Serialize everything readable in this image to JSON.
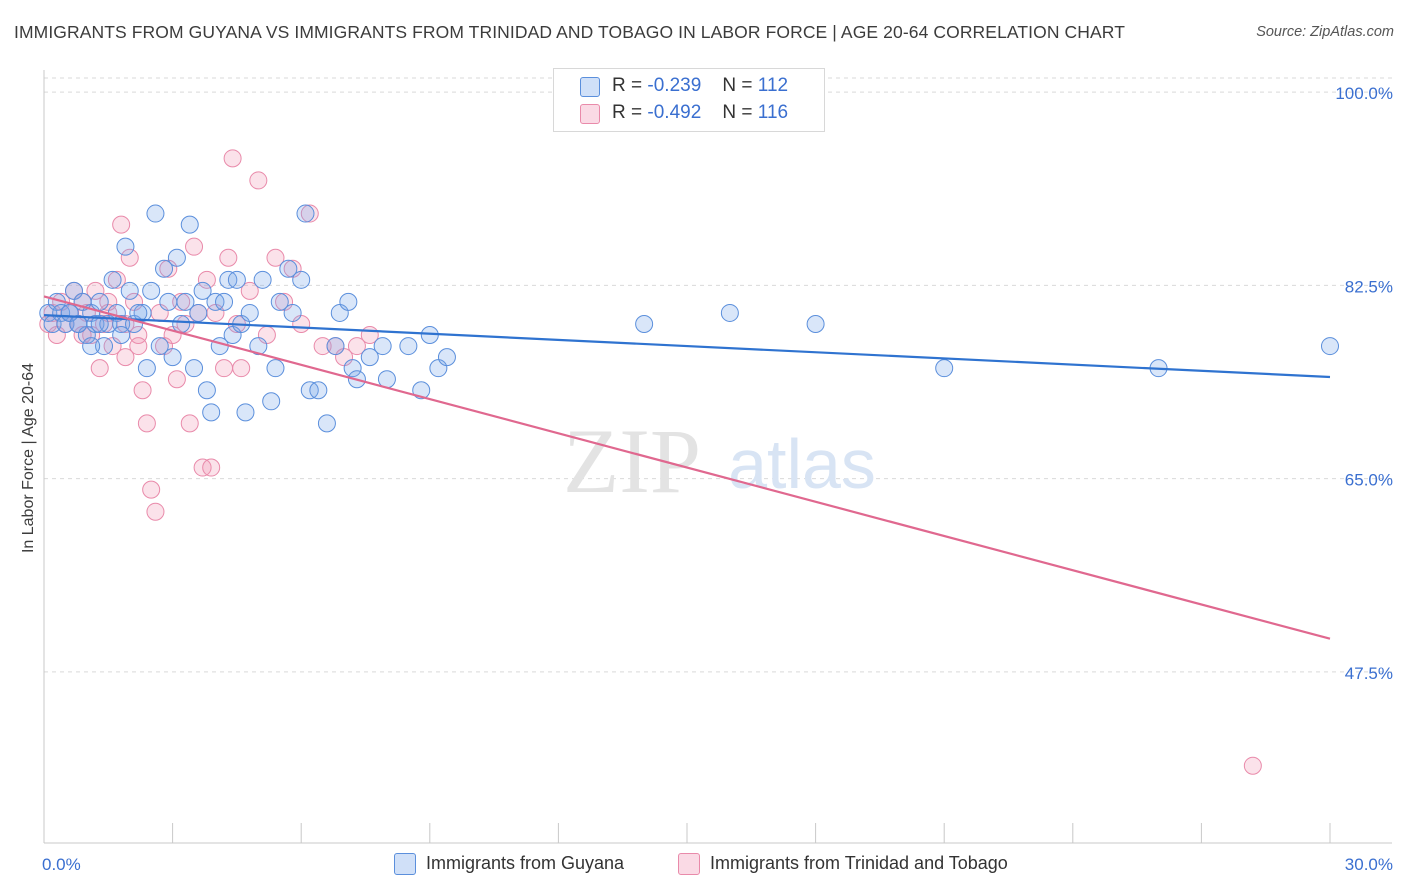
{
  "title": "IMMIGRANTS FROM GUYANA VS IMMIGRANTS FROM TRINIDAD AND TOBAGO IN LABOR FORCE | AGE 20-64 CORRELATION CHART",
  "source": "Source: ZipAtlas.com",
  "watermark": {
    "left": "ZIP",
    "right": "atlas"
  },
  "legend_stats": [
    {
      "r_label": "R =",
      "r_value": "-0.239",
      "n_label": "N =",
      "n_value": "112"
    },
    {
      "r_label": "R =",
      "r_value": "-0.492",
      "n_label": "N =",
      "n_value": "116"
    }
  ],
  "colors": {
    "guyana_fill": "rgba(120,165,235,0.28)",
    "guyana_stroke": "#5b8fdc",
    "guyana_line": "#2f73d0",
    "trinidad_fill": "rgba(240,150,180,0.28)",
    "trinidad_stroke": "#e98aaa",
    "trinidad_line": "#e0688f",
    "axis_text": "#3a6fd0",
    "grid": "#d9d9d9"
  },
  "chart_data": {
    "type": "scatter",
    "title": "IMMIGRANTS FROM GUYANA VS IMMIGRANTS FROM TRINIDAD AND TOBAGO IN LABOR FORCE | AGE 20-64 CORRELATION CHART",
    "xlabel": "",
    "ylabel": "In Labor Force | Age 20-64",
    "xlim": [
      0,
      30
    ],
    "ylim": [
      32,
      102
    ],
    "x_tick_labels": [
      "0.0%",
      "30.0%"
    ],
    "y_ticks": [
      47.5,
      65.0,
      82.5,
      100.0
    ],
    "y_tick_labels": [
      "47.5%",
      "65.0%",
      "82.5%",
      "100.0%"
    ],
    "grid": true,
    "legend_position": "bottom",
    "series": [
      {
        "name": "Immigrants from Guyana",
        "r": -0.239,
        "n": 112,
        "trend": {
          "x": [
            0,
            30
          ],
          "y": [
            79.8,
            74.2
          ]
        },
        "points": [
          [
            0.1,
            80
          ],
          [
            0.2,
            79
          ],
          [
            0.3,
            81
          ],
          [
            0.4,
            80
          ],
          [
            0.5,
            79
          ],
          [
            0.6,
            80
          ],
          [
            0.7,
            82
          ],
          [
            0.8,
            79
          ],
          [
            0.9,
            81
          ],
          [
            1.0,
            78
          ],
          [
            1.1,
            80
          ],
          [
            1.2,
            79
          ],
          [
            1.3,
            81
          ],
          [
            1.4,
            77
          ],
          [
            1.5,
            79
          ],
          [
            1.6,
            83
          ],
          [
            1.7,
            80
          ],
          [
            1.8,
            79
          ],
          [
            1.9,
            86
          ],
          [
            2.0,
            82
          ],
          [
            2.1,
            79
          ],
          [
            2.3,
            80
          ],
          [
            2.4,
            75
          ],
          [
            2.5,
            82
          ],
          [
            2.6,
            89
          ],
          [
            2.7,
            77
          ],
          [
            2.8,
            84
          ],
          [
            2.9,
            81
          ],
          [
            3.0,
            76
          ],
          [
            3.1,
            85
          ],
          [
            3.2,
            79
          ],
          [
            3.3,
            81
          ],
          [
            3.4,
            88
          ],
          [
            3.5,
            75
          ],
          [
            3.6,
            80
          ],
          [
            3.7,
            82
          ],
          [
            3.8,
            73
          ],
          [
            3.9,
            71
          ],
          [
            4.0,
            81
          ],
          [
            4.1,
            77
          ],
          [
            4.2,
            81
          ],
          [
            4.3,
            83
          ],
          [
            4.4,
            78
          ],
          [
            4.5,
            83
          ],
          [
            4.6,
            79
          ],
          [
            4.7,
            71
          ],
          [
            4.8,
            80
          ],
          [
            5.0,
            77
          ],
          [
            5.1,
            83
          ],
          [
            5.3,
            72
          ],
          [
            5.4,
            75
          ],
          [
            5.5,
            81
          ],
          [
            5.7,
            84
          ],
          [
            5.8,
            80
          ],
          [
            6.0,
            83
          ],
          [
            6.1,
            89
          ],
          [
            6.2,
            73
          ],
          [
            6.4,
            73
          ],
          [
            6.6,
            70
          ],
          [
            6.8,
            77
          ],
          [
            6.9,
            80
          ],
          [
            7.1,
            81
          ],
          [
            7.2,
            75
          ],
          [
            7.3,
            74
          ],
          [
            7.6,
            76
          ],
          [
            7.9,
            77
          ],
          [
            8.0,
            74
          ],
          [
            8.5,
            77
          ],
          [
            8.8,
            73
          ],
          [
            9.0,
            78
          ],
          [
            9.2,
            75
          ],
          [
            9.4,
            76
          ],
          [
            1.3,
            79
          ],
          [
            1.8,
            78
          ],
          [
            2.2,
            80
          ],
          [
            0.6,
            80
          ],
          [
            1.1,
            77
          ],
          [
            0.8,
            79
          ],
          [
            14,
            79
          ],
          [
            16,
            80
          ],
          [
            18,
            79
          ],
          [
            21,
            75
          ],
          [
            26,
            75
          ],
          [
            30,
            77
          ]
        ],
        "style": "blue circles"
      },
      {
        "name": "Immigrants from Trinidad and Tobago",
        "r": -0.492,
        "n": 116,
        "trend": {
          "x": [
            0,
            30
          ],
          "y": [
            81.5,
            50.5
          ]
        },
        "points": [
          [
            0.1,
            79
          ],
          [
            0.2,
            80
          ],
          [
            0.3,
            78
          ],
          [
            0.4,
            81
          ],
          [
            0.5,
            79
          ],
          [
            0.6,
            80
          ],
          [
            0.7,
            82
          ],
          [
            0.8,
            79
          ],
          [
            0.9,
            81
          ],
          [
            1.0,
            80
          ],
          [
            1.1,
            78
          ],
          [
            1.2,
            82
          ],
          [
            1.3,
            75
          ],
          [
            1.4,
            79
          ],
          [
            1.5,
            80
          ],
          [
            1.6,
            77
          ],
          [
            1.7,
            83
          ],
          [
            1.8,
            88
          ],
          [
            1.9,
            76
          ],
          [
            2.0,
            85
          ],
          [
            2.1,
            81
          ],
          [
            2.2,
            78
          ],
          [
            2.3,
            73
          ],
          [
            2.4,
            70
          ],
          [
            2.5,
            64
          ],
          [
            2.6,
            62
          ],
          [
            2.7,
            80
          ],
          [
            2.8,
            77
          ],
          [
            2.9,
            84
          ],
          [
            3.0,
            78
          ],
          [
            3.1,
            74
          ],
          [
            3.2,
            81
          ],
          [
            3.3,
            79
          ],
          [
            3.4,
            70
          ],
          [
            3.5,
            86
          ],
          [
            3.6,
            80
          ],
          [
            3.7,
            66
          ],
          [
            3.8,
            83
          ],
          [
            3.9,
            66
          ],
          [
            4.0,
            80
          ],
          [
            4.2,
            75
          ],
          [
            4.3,
            85
          ],
          [
            4.4,
            94
          ],
          [
            4.5,
            79
          ],
          [
            4.6,
            75
          ],
          [
            4.8,
            82
          ],
          [
            5.0,
            92
          ],
          [
            5.2,
            78
          ],
          [
            5.4,
            85
          ],
          [
            5.6,
            81
          ],
          [
            5.8,
            84
          ],
          [
            6.0,
            79
          ],
          [
            6.2,
            89
          ],
          [
            6.5,
            77
          ],
          [
            6.8,
            77
          ],
          [
            7.0,
            76
          ],
          [
            7.3,
            77
          ],
          [
            7.6,
            78
          ],
          [
            2.2,
            77
          ],
          [
            1.5,
            81
          ],
          [
            1.9,
            79
          ],
          [
            0.9,
            78
          ],
          [
            28.2,
            39
          ]
        ],
        "style": "pink circles"
      }
    ]
  }
}
